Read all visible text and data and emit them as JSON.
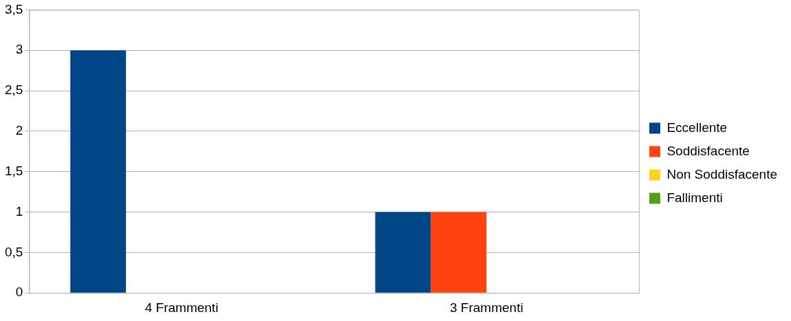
{
  "chart_data": {
    "type": "bar",
    "categories": [
      "4 Frammenti",
      "3 Frammenti"
    ],
    "series": [
      {
        "name": "Eccellente",
        "color": "#004586",
        "values": [
          3,
          1
        ]
      },
      {
        "name": "Soddisfacente",
        "color": "#ff420e",
        "values": [
          0,
          1
        ]
      },
      {
        "name": "Non Soddisfacente",
        "color": "#ffd320",
        "values": [
          0,
          0
        ]
      },
      {
        "name": "Fallimenti",
        "color": "#579d1c",
        "values": [
          0,
          0
        ]
      }
    ],
    "ylim": [
      0,
      3.5
    ],
    "yticks": [
      0,
      {
        "value": 0.5,
        "label": "0,5"
      },
      1,
      {
        "value": 1.5,
        "label": "1,5"
      },
      2,
      {
        "value": 2.5,
        "label": "2,5"
      },
      3,
      {
        "value": 3.5,
        "label": "3,5"
      }
    ],
    "grid": "y",
    "legend": "right"
  }
}
